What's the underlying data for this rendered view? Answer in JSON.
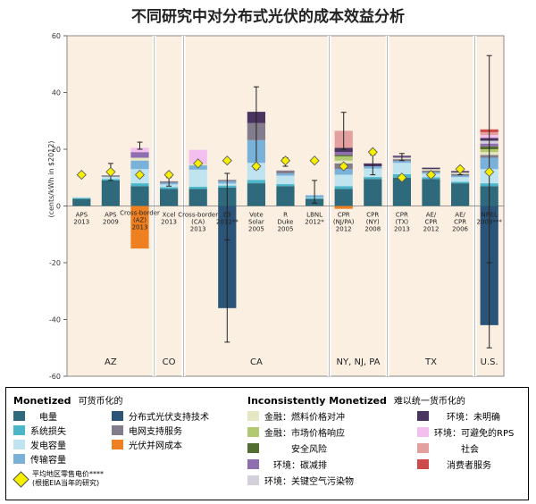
{
  "chart_data": {
    "type": "bar",
    "title": "不同研究中对分布式光伏的成本效益分析",
    "ylabel": "(cents/kWh in $2012)",
    "ylim": [
      -60,
      60
    ],
    "yticks": [
      -60,
      -40,
      -20,
      0,
      20,
      40,
      60
    ],
    "regions": [
      {
        "label": "AZ",
        "start": 0,
        "end": 3
      },
      {
        "label": "CO",
        "start": 3,
        "end": 4
      },
      {
        "label": "CA",
        "start": 4,
        "end": 9
      },
      {
        "label": "NY, NJ, PA",
        "start": 9,
        "end": 11
      },
      {
        "label": "TX",
        "start": 11,
        "end": 14
      },
      {
        "label": "U.S.",
        "start": 14,
        "end": 15
      }
    ],
    "categories": [
      "APS 2013",
      "APS 2009",
      "Cross-border (AZ) 2013",
      "Xcel 2013",
      "Cross-border (CA) 2013",
      "E3 2012**",
      "Vote Solar 2005",
      "R Duke 2005",
      "LBNL 2012*",
      "CPR (NJ/PA) 2012",
      "CPR (NY) 2008",
      "CPR (TX) 2013",
      "AE/ CPR 2012",
      "AE/ CPR 2006",
      "NREL 2008***"
    ],
    "series": [
      {
        "key": "energy",
        "name": "电量",
        "color": "#2e6a7c",
        "values": [
          2.5,
          9,
          7,
          6,
          6,
          6.5,
          8,
          7,
          2.5,
          6,
          9.5,
          10,
          9.5,
          8,
          7
        ]
      },
      {
        "key": "losses",
        "name": "系统损失",
        "color": "#4bb6c9",
        "values": [
          0.3,
          0.5,
          1,
          0.6,
          0.8,
          0.7,
          1.2,
          0.7,
          0.3,
          1,
          0.7,
          1.2,
          0.6,
          0.5,
          1
        ]
      },
      {
        "key": "gen_capacity",
        "name": "发电容量",
        "color": "#bfe3ef",
        "values": [
          0.3,
          0.8,
          5,
          1,
          6,
          0.7,
          6,
          3,
          0.2,
          4,
          3,
          4,
          1.3,
          1.7,
          5
        ]
      },
      {
        "key": "td_capacity",
        "name": "传输容量",
        "color": "#7ab1d8",
        "values": [
          0,
          0,
          3,
          0.6,
          1.5,
          0.8,
          8,
          0.8,
          0.8,
          2,
          0.8,
          0.7,
          0.5,
          0.5,
          4
        ]
      },
      {
        "key": "grid_support",
        "name": "电网支持服务",
        "color": "#837c8c",
        "values": [
          0,
          0.5,
          0,
          0.5,
          0,
          0.5,
          6,
          1,
          0,
          2,
          0,
          0.6,
          0.6,
          0.6,
          1
        ]
      },
      {
        "key": "fuel_hedge",
        "name": "金融：燃料价格对冲",
        "color": "#e4e7c2",
        "values": [
          0,
          0,
          1,
          0,
          0.5,
          0,
          0,
          0,
          0,
          1,
          0,
          0.5,
          0.5,
          0.5,
          1
        ]
      },
      {
        "key": "market_price",
        "name": "金融：市场价格响应",
        "color": "#b2c872",
        "values": [
          0,
          0,
          0,
          0,
          0,
          0,
          0,
          0,
          0,
          1.5,
          0,
          0,
          0,
          0,
          1
        ]
      },
      {
        "key": "security",
        "name": "安全风险",
        "color": "#536e30",
        "values": [
          0,
          0,
          0,
          0,
          0,
          0,
          0,
          0,
          0,
          0.5,
          0,
          0,
          0,
          0,
          1
        ]
      },
      {
        "key": "carbon",
        "name": "环境：碳减排",
        "color": "#8f6db1",
        "values": [
          0,
          0,
          2,
          0,
          0,
          0,
          0,
          0,
          0,
          1,
          0,
          0.3,
          0,
          0,
          1
        ]
      },
      {
        "key": "criteria_pollutants",
        "name": "环境：关键空气污染物",
        "color": "#d4d0db",
        "values": [
          0,
          0,
          0,
          0,
          0,
          0,
          0,
          0,
          0,
          0,
          0,
          0,
          0,
          0,
          1
        ]
      },
      {
        "key": "env_unspecified",
        "name": "环境：未明确",
        "color": "#4a3560",
        "values": [
          0,
          0,
          0,
          0,
          0,
          0,
          4,
          0,
          0,
          1.5,
          1,
          0.4,
          0.5,
          0.5,
          1
        ]
      },
      {
        "key": "avoided_rps",
        "name": "环境：可避免的RPS",
        "color": "#f2bfee",
        "values": [
          0,
          0,
          1.5,
          0,
          5,
          0,
          0,
          0,
          0,
          0,
          0,
          0,
          0,
          0,
          1
        ]
      },
      {
        "key": "social",
        "name": "社会",
        "color": "#e3a09e",
        "values": [
          0,
          0,
          0,
          0,
          0,
          0,
          0,
          0,
          0,
          6,
          0,
          0,
          0,
          0,
          1
        ]
      },
      {
        "key": "customer_services",
        "name": "消费者服务",
        "color": "#cd4a4a",
        "values": [
          0,
          0,
          0,
          0,
          0,
          0,
          0,
          0,
          0,
          0,
          0,
          0,
          0,
          0,
          1
        ]
      },
      {
        "key": "dpv_technology",
        "name": "分布式光伏支持技术",
        "color": "#2b5478",
        "values": [
          0,
          0,
          0,
          0,
          0,
          -36,
          0,
          0,
          0,
          0,
          0,
          0,
          0,
          0,
          -42
        ]
      },
      {
        "key": "integration_cost",
        "name": "光伏并网成本",
        "color": "#ee8021",
        "values": [
          0,
          0,
          -15,
          0,
          0,
          0,
          0,
          0,
          0,
          -1,
          0,
          0,
          0,
          0,
          0
        ]
      }
    ],
    "error_bars": [
      null,
      [
        9,
        15
      ],
      [
        20,
        22.5
      ],
      [
        7,
        10
      ],
      null,
      [
        -48,
        11.5
      ],
      [
        13,
        42
      ],
      [
        14,
        17
      ],
      [
        1,
        9
      ],
      [
        20,
        33
      ],
      [
        11,
        18
      ],
      [
        16,
        18.5
      ],
      null,
      [
        11,
        13
      ],
      [
        -50,
        53
      ]
    ],
    "lower_range": [
      null,
      null,
      null,
      null,
      null,
      [
        -12,
        null
      ],
      null,
      null,
      null,
      null,
      null,
      null,
      null,
      null,
      [
        -20,
        null
      ]
    ],
    "retail_rate": [
      11,
      12,
      11,
      11,
      15,
      16,
      14,
      16,
      16,
      14,
      19,
      10,
      11,
      13,
      12
    ],
    "legend_placement": "bottom"
  },
  "legend": {
    "monetized_title": "Monetized",
    "monetized_sub": "可货币化的",
    "inconsistent_title": "Inconsistently Monetized",
    "inconsistent_sub": "难以统一货币化的",
    "retail_label": "平均地区零售电价****",
    "retail_sub": "(根据EIA当年的研究)"
  }
}
